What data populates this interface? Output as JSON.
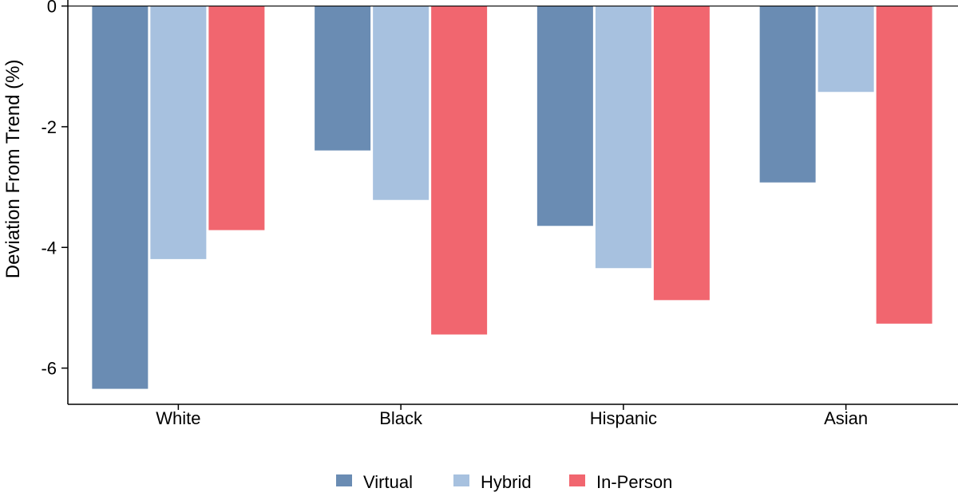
{
  "chart_data": {
    "type": "bar",
    "categories": [
      "White",
      "Black",
      "Hispanic",
      "Asian"
    ],
    "series": [
      {
        "name": "Virtual",
        "color": "#6a8cb3",
        "values": [
          -6.35,
          -2.4,
          -3.65,
          -2.93
        ]
      },
      {
        "name": "Hybrid",
        "color": "#a7c1df",
        "values": [
          -4.2,
          -3.22,
          -4.35,
          -1.43
        ]
      },
      {
        "name": "In-Person",
        "color": "#f1666f",
        "values": [
          -3.72,
          -5.45,
          -4.88,
          -5.27
        ]
      }
    ],
    "ylabel": "Deviation From Trend (%)",
    "xlabel": "",
    "ylim": [
      -6.6,
      0.1
    ],
    "yticks": [
      0,
      -2,
      -4,
      -6
    ],
    "ytick_labels": [
      "0",
      "-2",
      "-4",
      "-6"
    ],
    "grid": false,
    "legend_position": "bottom"
  }
}
